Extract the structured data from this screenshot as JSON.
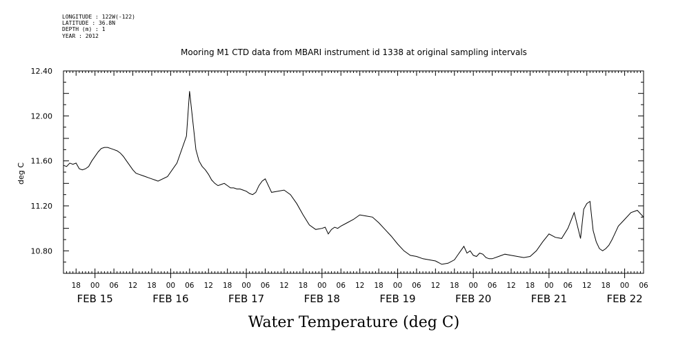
{
  "header": {
    "longitude": "LONGITUDE : 122W(-122)",
    "latitude": "LATITUDE : 36.8N",
    "depth": "DEPTH (m) : 1",
    "year": "YEAR : 2012"
  },
  "chart_data": {
    "type": "line",
    "title": "Mooring M1 CTD data from MBARI instrument id 1338 at original sampling intervals",
    "xlabel": "Water Temperature (deg C)",
    "ylabel": "deg C",
    "ylim": [
      10.6,
      12.4
    ],
    "xlim_hours": [
      -10,
      174
    ],
    "y_ticks": [
      "12.40",
      "12.00",
      "11.60",
      "11.20",
      "10.80"
    ],
    "hour_labels": [
      "18",
      "00",
      "06",
      "12",
      "18",
      "00",
      "06",
      "12",
      "18",
      "00",
      "06",
      "12",
      "18",
      "00",
      "06",
      "12",
      "18",
      "00",
      "06",
      "12",
      "18",
      "00",
      "06",
      "12",
      "18",
      "00",
      "06",
      "12",
      "18",
      "00",
      "06"
    ],
    "day_labels": [
      "FEB 15",
      "FEB 16",
      "FEB 17",
      "FEB 18",
      "FEB 19",
      "FEB 20",
      "FEB 21",
      "FEB 22"
    ],
    "series": [
      {
        "x": [
          -10,
          -9,
          -8,
          -7,
          -6,
          -5,
          -4,
          -3,
          -2,
          -1,
          1,
          2,
          3,
          4,
          5,
          6,
          7,
          8,
          9,
          10,
          11,
          12,
          13,
          14,
          15,
          16,
          17,
          18,
          19,
          20,
          23,
          26,
          29,
          30,
          32,
          33,
          34,
          35,
          36,
          37,
          38,
          39,
          40,
          41,
          42,
          43,
          44,
          45,
          46,
          47,
          48,
          49,
          50,
          51,
          52,
          53,
          54,
          56,
          58,
          60,
          62,
          64,
          66,
          68,
          70,
          72,
          73,
          74,
          75,
          76,
          77,
          78,
          80,
          82,
          84,
          86,
          88,
          90,
          92,
          94,
          96,
          98,
          100,
          102,
          104,
          106,
          108,
          110,
          112,
          114,
          115,
          116,
          117,
          118,
          119,
          120,
          121,
          122,
          123,
          124,
          125,
          126,
          128,
          130,
          132,
          134,
          136,
          138,
          140,
          142,
          144,
          146,
          148,
          150,
          152,
          154,
          155,
          156,
          157,
          158,
          159,
          160,
          161,
          162,
          163,
          164,
          165,
          166,
          168,
          170,
          172,
          174
        ],
        "y": [
          11.56,
          11.55,
          11.58,
          11.57,
          11.58,
          11.53,
          11.52,
          11.53,
          11.55,
          11.6,
          11.68,
          11.71,
          11.72,
          11.72,
          11.71,
          11.7,
          11.69,
          11.67,
          11.64,
          11.6,
          11.56,
          11.52,
          11.49,
          11.48,
          11.47,
          11.46,
          11.45,
          11.44,
          11.43,
          11.42,
          11.46,
          11.58,
          11.82,
          12.22,
          11.7,
          11.6,
          11.55,
          11.52,
          11.48,
          11.43,
          11.4,
          11.38,
          11.39,
          11.4,
          11.38,
          11.36,
          11.36,
          11.35,
          11.35,
          11.34,
          11.33,
          11.31,
          11.3,
          11.32,
          11.38,
          11.42,
          11.44,
          11.32,
          11.33,
          11.34,
          11.3,
          11.22,
          11.12,
          11.03,
          10.99,
          11.0,
          11.01,
          10.95,
          10.99,
          11.01,
          11.0,
          11.02,
          11.05,
          11.08,
          11.12,
          11.11,
          11.1,
          11.05,
          10.99,
          10.93,
          10.86,
          10.8,
          10.76,
          10.75,
          10.73,
          10.72,
          10.71,
          10.68,
          10.69,
          10.72,
          10.76,
          10.8,
          10.84,
          10.78,
          10.8,
          10.76,
          10.75,
          10.78,
          10.77,
          10.74,
          10.73,
          10.73,
          10.75,
          10.77,
          10.76,
          10.75,
          10.74,
          10.75,
          10.8,
          10.88,
          10.95,
          10.92,
          10.91,
          11.0,
          11.14,
          10.91,
          11.17,
          11.22,
          11.24,
          10.98,
          10.88,
          10.82,
          10.8,
          10.82,
          10.85,
          10.9,
          10.96,
          11.02,
          11.08,
          11.14,
          11.16,
          11.1
        ]
      }
    ]
  }
}
